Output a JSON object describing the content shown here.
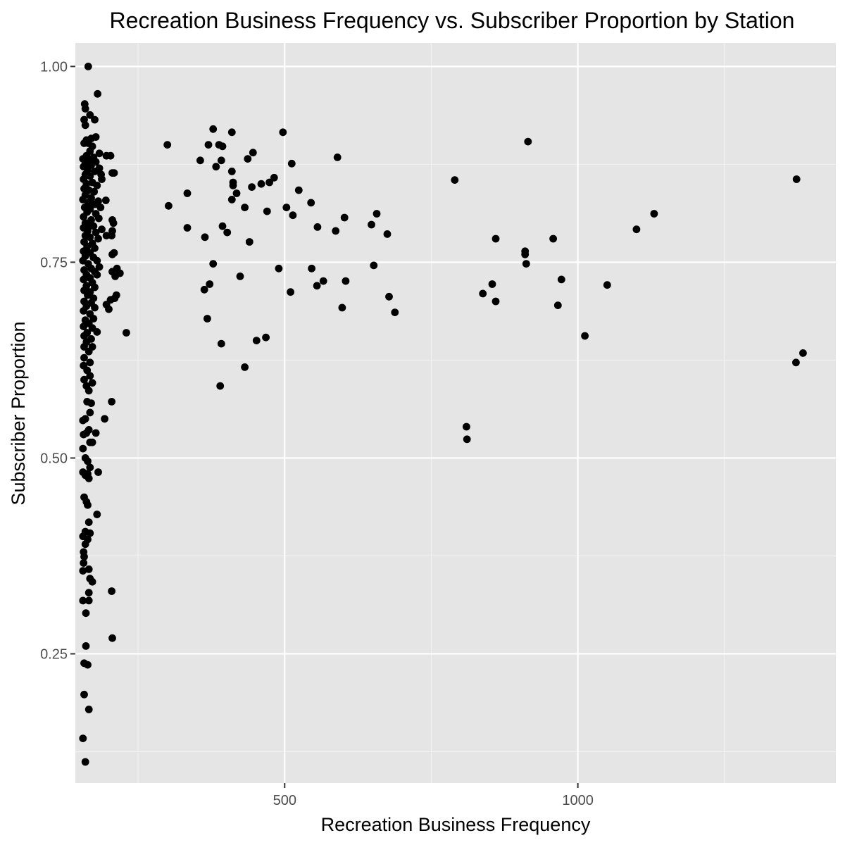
{
  "chart_data": {
    "type": "scatter",
    "title": "Recreation Business Frequency vs. Subscriber Proportion by Station",
    "xlabel": "Recreation Business Frequency",
    "ylabel": "Subscriber Proportion",
    "xlim": [
      143,
      1440
    ],
    "ylim": [
      0.085,
      1.03
    ],
    "x_ticks": [
      500,
      1000
    ],
    "x_tick_labels": [
      "500",
      "1000"
    ],
    "y_ticks": [
      0.25,
      0.5,
      0.75,
      1.0
    ],
    "y_tick_labels": [
      "0.25",
      "0.50",
      "0.75",
      "1.00"
    ],
    "grid": true,
    "point_color": "#000000",
    "panel_color": "#e5e5e5",
    "points": [
      [
        165,
        1.0
      ],
      [
        181,
        0.965
      ],
      [
        159,
        0.952
      ],
      [
        160,
        0.946
      ],
      [
        168,
        0.938
      ],
      [
        176,
        0.932
      ],
      [
        158,
        0.932
      ],
      [
        160,
        0.925
      ],
      [
        178,
        0.91
      ],
      [
        170,
        0.908
      ],
      [
        162,
        0.906
      ],
      [
        158,
        0.902
      ],
      [
        165,
        0.902
      ],
      [
        172,
        0.898
      ],
      [
        168,
        0.892
      ],
      [
        184,
        0.889
      ],
      [
        162,
        0.886
      ],
      [
        174,
        0.884
      ],
      [
        156,
        0.882
      ],
      [
        166,
        0.88
      ],
      [
        178,
        0.878
      ],
      [
        160,
        0.876
      ],
      [
        170,
        0.874
      ],
      [
        157,
        0.872
      ],
      [
        184,
        0.87
      ],
      [
        164,
        0.868
      ],
      [
        176,
        0.866
      ],
      [
        160,
        0.862
      ],
      [
        187,
        0.862
      ],
      [
        168,
        0.86
      ],
      [
        157,
        0.856
      ],
      [
        188,
        0.856
      ],
      [
        172,
        0.852
      ],
      [
        162,
        0.85
      ],
      [
        180,
        0.848
      ],
      [
        158,
        0.844
      ],
      [
        166,
        0.842
      ],
      [
        175,
        0.84
      ],
      [
        160,
        0.836
      ],
      [
        170,
        0.832
      ],
      [
        156,
        0.83
      ],
      [
        182,
        0.828
      ],
      [
        165,
        0.826
      ],
      [
        176,
        0.824
      ],
      [
        159,
        0.82
      ],
      [
        186,
        0.82
      ],
      [
        168,
        0.818
      ],
      [
        163,
        0.814
      ],
      [
        178,
        0.812
      ],
      [
        157,
        0.808
      ],
      [
        183,
        0.806
      ],
      [
        170,
        0.804
      ],
      [
        160,
        0.8
      ],
      [
        166,
        0.798
      ],
      [
        174,
        0.796
      ],
      [
        157,
        0.794
      ],
      [
        188,
        0.792
      ],
      [
        164,
        0.79
      ],
      [
        178,
        0.788
      ],
      [
        160,
        0.784
      ],
      [
        168,
        0.782
      ],
      [
        182,
        0.78
      ],
      [
        158,
        0.776
      ],
      [
        172,
        0.774
      ],
      [
        163,
        0.77
      ],
      [
        176,
        0.768
      ],
      [
        157,
        0.764
      ],
      [
        168,
        0.762
      ],
      [
        160,
        0.758
      ],
      [
        174,
        0.756
      ],
      [
        156,
        0.752
      ],
      [
        180,
        0.752
      ],
      [
        165,
        0.748
      ],
      [
        184,
        0.744
      ],
      [
        170,
        0.742
      ],
      [
        158,
        0.74
      ],
      [
        176,
        0.738
      ],
      [
        162,
        0.734
      ],
      [
        180,
        0.734
      ],
      [
        168,
        0.73
      ],
      [
        157,
        0.728
      ],
      [
        172,
        0.724
      ],
      [
        162,
        0.72
      ],
      [
        176,
        0.718
      ],
      [
        158,
        0.714
      ],
      [
        168,
        0.712
      ],
      [
        164,
        0.708
      ],
      [
        174,
        0.704
      ],
      [
        158,
        0.7
      ],
      [
        170,
        0.698
      ],
      [
        162,
        0.694
      ],
      [
        176,
        0.692
      ],
      [
        157,
        0.688
      ],
      [
        168,
        0.684
      ],
      [
        174,
        0.678
      ],
      [
        160,
        0.676
      ],
      [
        166,
        0.672
      ],
      [
        157,
        0.668
      ],
      [
        172,
        0.666
      ],
      [
        180,
        0.661
      ],
      [
        163,
        0.66
      ],
      [
        158,
        0.656
      ],
      [
        170,
        0.652
      ],
      [
        162,
        0.648
      ],
      [
        158,
        0.642
      ],
      [
        172,
        0.642
      ],
      [
        166,
        0.636
      ],
      [
        158,
        0.628
      ],
      [
        168,
        0.622
      ],
      [
        157,
        0.618
      ],
      [
        163,
        0.612
      ],
      [
        168,
        0.605
      ],
      [
        158,
        0.6
      ],
      [
        172,
        0.596
      ],
      [
        162,
        0.592
      ],
      [
        166,
        0.586
      ],
      [
        163,
        0.572
      ],
      [
        170,
        0.57
      ],
      [
        168,
        0.558
      ],
      [
        160,
        0.55
      ],
      [
        156,
        0.548
      ],
      [
        166,
        0.536
      ],
      [
        162,
        0.532
      ],
      [
        178,
        0.532
      ],
      [
        157,
        0.53
      ],
      [
        172,
        0.52
      ],
      [
        168,
        0.52
      ],
      [
        156,
        0.512
      ],
      [
        160,
        0.5
      ],
      [
        164,
        0.496
      ],
      [
        168,
        0.488
      ],
      [
        182,
        0.482
      ],
      [
        156,
        0.482
      ],
      [
        160,
        0.478
      ],
      [
        164,
        0.48
      ],
      [
        166,
        0.474
      ],
      [
        158,
        0.45
      ],
      [
        162,
        0.444
      ],
      [
        164,
        0.44
      ],
      [
        180,
        0.428
      ],
      [
        166,
        0.418
      ],
      [
        160,
        0.406
      ],
      [
        168,
        0.404
      ],
      [
        156,
        0.4
      ],
      [
        164,
        0.396
      ],
      [
        160,
        0.39
      ],
      [
        157,
        0.38
      ],
      [
        158,
        0.374
      ],
      [
        157,
        0.366
      ],
      [
        166,
        0.358
      ],
      [
        156,
        0.356
      ],
      [
        168,
        0.346
      ],
      [
        172,
        0.342
      ],
      [
        166,
        0.328
      ],
      [
        166,
        0.318
      ],
      [
        156,
        0.318
      ],
      [
        161,
        0.302
      ],
      [
        161,
        0.26
      ],
      [
        158,
        0.238
      ],
      [
        164,
        0.236
      ],
      [
        158,
        0.198
      ],
      [
        166,
        0.179
      ],
      [
        156,
        0.142
      ],
      [
        160,
        0.112
      ],
      [
        196,
        0.886
      ],
      [
        203,
        0.886
      ],
      [
        195,
        0.829
      ],
      [
        206,
        0.864
      ],
      [
        209,
        0.864
      ],
      [
        206,
        0.804
      ],
      [
        208,
        0.8
      ],
      [
        206,
        0.79
      ],
      [
        196,
        0.784
      ],
      [
        205,
        0.784
      ],
      [
        209,
        0.762
      ],
      [
        206,
        0.76
      ],
      [
        214,
        0.742
      ],
      [
        206,
        0.738
      ],
      [
        219,
        0.736
      ],
      [
        211,
        0.732
      ],
      [
        213,
        0.708
      ],
      [
        210,
        0.704
      ],
      [
        203,
        0.702
      ],
      [
        196,
        0.696
      ],
      [
        200,
        0.69
      ],
      [
        230,
        0.66
      ],
      [
        205,
        0.572
      ],
      [
        193,
        0.55
      ],
      [
        205,
        0.33
      ],
      [
        206,
        0.27
      ],
      [
        300,
        0.9
      ],
      [
        302,
        0.822
      ],
      [
        334,
        0.838
      ],
      [
        334,
        0.794
      ],
      [
        356,
        0.88
      ],
      [
        364,
        0.782
      ],
      [
        363,
        0.715
      ],
      [
        368,
        0.678
      ],
      [
        372,
        0.722
      ],
      [
        370,
        0.9
      ],
      [
        378,
        0.92
      ],
      [
        383,
        0.872
      ],
      [
        378,
        0.748
      ],
      [
        388,
        0.9
      ],
      [
        392,
        0.88
      ],
      [
        394,
        0.898
      ],
      [
        392,
        0.646
      ],
      [
        390,
        0.592
      ],
      [
        394,
        0.796
      ],
      [
        402,
        0.788
      ],
      [
        410,
        0.916
      ],
      [
        410,
        0.866
      ],
      [
        412,
        0.852
      ],
      [
        412,
        0.848
      ],
      [
        410,
        0.83
      ],
      [
        418,
        0.838
      ],
      [
        424,
        0.732
      ],
      [
        432,
        0.82
      ],
      [
        432,
        0.616
      ],
      [
        437,
        0.882
      ],
      [
        440,
        0.776
      ],
      [
        444,
        0.846
      ],
      [
        446,
        0.89
      ],
      [
        452,
        0.65
      ],
      [
        460,
        0.85
      ],
      [
        468,
        0.654
      ],
      [
        470,
        0.815
      ],
      [
        474,
        0.852
      ],
      [
        482,
        0.858
      ],
      [
        490,
        0.742
      ],
      [
        497,
        0.916
      ],
      [
        503,
        0.82
      ],
      [
        510,
        0.712
      ],
      [
        512,
        0.876
      ],
      [
        514,
        0.81
      ],
      [
        524,
        0.842
      ],
      [
        545,
        0.826
      ],
      [
        546,
        0.742
      ],
      [
        556,
        0.795
      ],
      [
        555,
        0.72
      ],
      [
        566,
        0.726
      ],
      [
        587,
        0.79
      ],
      [
        590,
        0.884
      ],
      [
        598,
        0.692
      ],
      [
        602,
        0.807
      ],
      [
        604,
        0.726
      ],
      [
        648,
        0.798
      ],
      [
        652,
        0.746
      ],
      [
        657,
        0.812
      ],
      [
        675,
        0.786
      ],
      [
        678,
        0.706
      ],
      [
        688,
        0.686
      ],
      [
        790,
        0.855
      ],
      [
        810,
        0.54
      ],
      [
        811,
        0.524
      ],
      [
        838,
        0.71
      ],
      [
        854,
        0.722
      ],
      [
        860,
        0.7
      ],
      [
        860,
        0.78
      ],
      [
        910,
        0.764
      ],
      [
        910,
        0.76
      ],
      [
        912,
        0.748
      ],
      [
        915,
        0.904
      ],
      [
        958,
        0.78
      ],
      [
        966,
        0.695
      ],
      [
        972,
        0.728
      ],
      [
        1012,
        0.656
      ],
      [
        1050,
        0.721
      ],
      [
        1100,
        0.792
      ],
      [
        1130,
        0.812
      ],
      [
        1373,
        0.856
      ],
      [
        1372,
        0.622
      ],
      [
        1384,
        0.634
      ]
    ]
  }
}
